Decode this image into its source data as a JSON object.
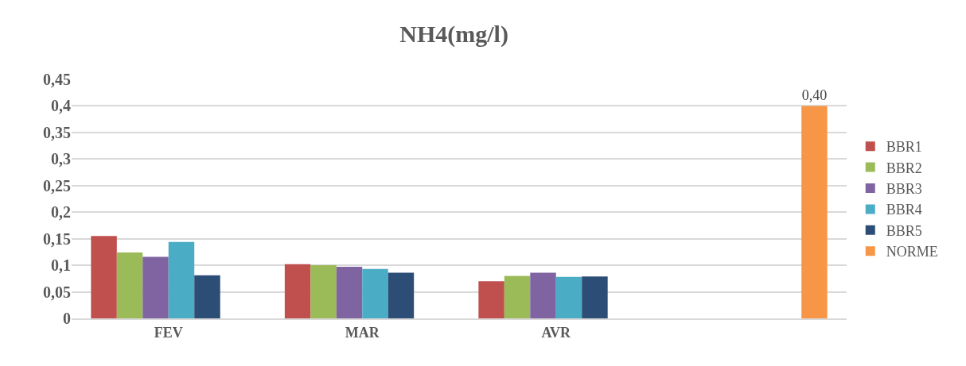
{
  "chart_data": {
    "type": "bar",
    "title": "NH4(mg/l)",
    "categories": [
      "FEV",
      "MAR",
      "AVR",
      null
    ],
    "series": [
      {
        "name": "BBR1",
        "color": "#c0504d",
        "values": [
          0.155,
          0.102,
          0.07,
          null
        ]
      },
      {
        "name": "BBR2",
        "color": "#9bbb59",
        "values": [
          0.124,
          0.1,
          0.08,
          null
        ]
      },
      {
        "name": "BBR3",
        "color": "#8064a2",
        "values": [
          0.116,
          0.097,
          0.086,
          null
        ]
      },
      {
        "name": "BBR4",
        "color": "#4bacc6",
        "values": [
          0.144,
          0.093,
          0.078,
          null
        ]
      },
      {
        "name": "BBR5",
        "color": "#2c4d75",
        "values": [
          0.081,
          0.086,
          0.079,
          null
        ]
      },
      {
        "name": "NORME",
        "color": "#f79646",
        "values": [
          null,
          null,
          null,
          0.4
        ],
        "value_labels": [
          null,
          null,
          null,
          "0,40"
        ]
      }
    ],
    "ylim": [
      0,
      0.45
    ],
    "yticks": [
      0,
      {
        "value": 0.05,
        "label": "0,05"
      },
      {
        "value": 0.1,
        "label": "0,1"
      },
      {
        "value": 0.15,
        "label": "0,15"
      },
      {
        "value": 0.2,
        "label": "0,2"
      },
      {
        "value": 0.25,
        "label": "0,25"
      },
      {
        "value": 0.3,
        "label": "0,3"
      },
      {
        "value": 0.35,
        "label": "0,35"
      },
      {
        "value": 0.4,
        "label": "0,4"
      },
      {
        "value": 0.45,
        "label": "0,45"
      }
    ],
    "grid": "y",
    "legend": "right"
  }
}
